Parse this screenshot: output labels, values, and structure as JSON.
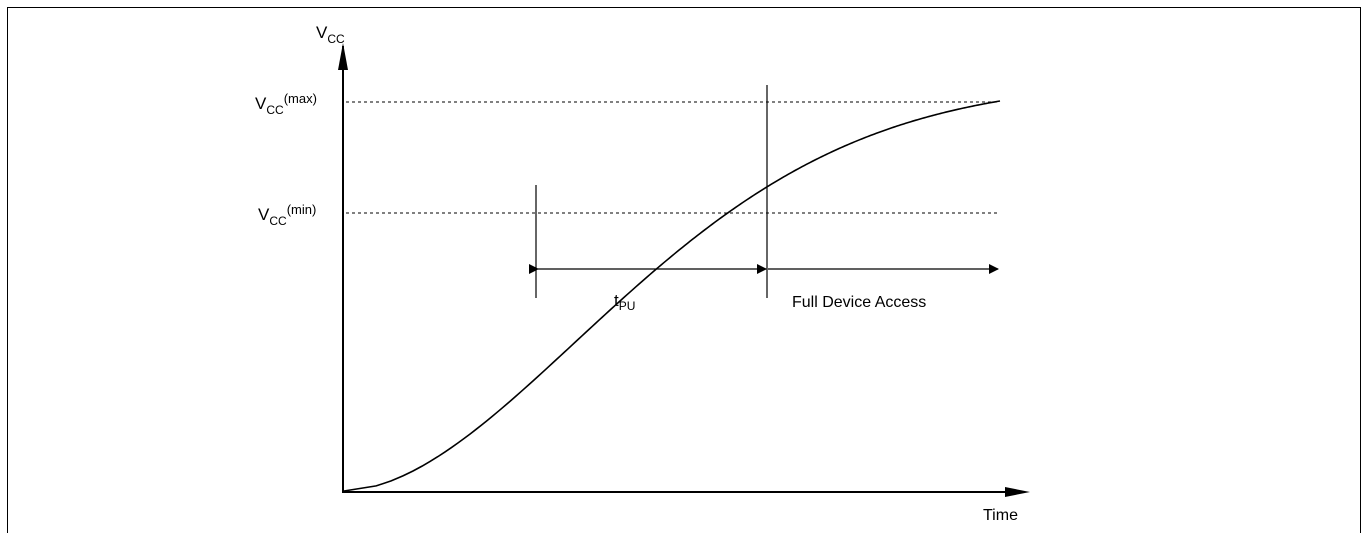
{
  "diagram": {
    "y_axis_label": {
      "main": "V",
      "sub": "CC"
    },
    "x_axis_label": "Time",
    "level_max_label": {
      "main": "V",
      "sub": "CC",
      "sup": "(max)"
    },
    "level_min_label": {
      "main": "V",
      "sub": "CC",
      "sup": "(min)"
    },
    "interval_label": {
      "main": "t",
      "sub": "PU"
    },
    "region_label": "Full Device Access",
    "stroke_color": "#000000"
  }
}
